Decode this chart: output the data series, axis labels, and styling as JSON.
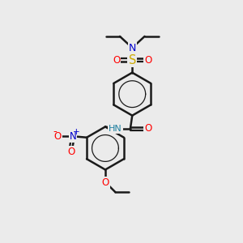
{
  "bg_color": "#ebebeb",
  "bond_color": "#1a1a1a",
  "bond_width": 1.8,
  "colors": {
    "N": "#0000cc",
    "O": "#ff0000",
    "S": "#ccaa00",
    "H": "#2080a0"
  },
  "font_size": 8.5
}
